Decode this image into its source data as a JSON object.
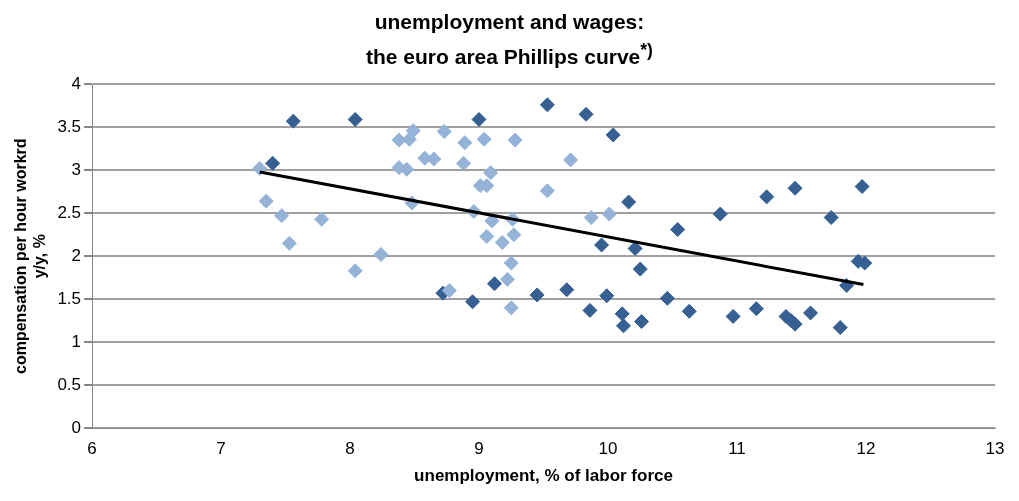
{
  "chart_data": {
    "type": "scatter",
    "title": "unemployment and wages:\nthe euro area Phillips curve$^{*)}$",
    "xlabel": "unemployment, % of labor force",
    "ylabel": "compensation per hour workrd\ny/y, %",
    "xlim": [
      6,
      13
    ],
    "xticks": [
      6,
      7,
      8,
      9,
      10,
      11,
      12,
      13
    ],
    "ylim": [
      0,
      4
    ],
    "yticks": [
      0,
      {
        "value": 0.5,
        "label": "0.5"
      },
      1,
      {
        "value": 1.5,
        "label": "1.5"
      },
      2,
      {
        "value": 2.5,
        "label": "2.5"
      },
      3,
      {
        "value": 3.5,
        "label": "3.5"
      },
      4
    ],
    "grid": "y",
    "legend": false,
    "marker": "diamond",
    "series": [
      {
        "color": "#95b3d7",
        "x": [
          7.3,
          7.35,
          7.47,
          7.53,
          7.78,
          8.04,
          8.24,
          8.38,
          8.46,
          8.49,
          8.38,
          8.44,
          8.58,
          8.65,
          8.73,
          8.89,
          8.88,
          9.04,
          8.48,
          8.96,
          9.09,
          9.01,
          9.06,
          9.1,
          9.06,
          8.77,
          9.28,
          9.71,
          9.53,
          9.87,
          10.01,
          9.26,
          9.18,
          9.27,
          9.25,
          9.22,
          9.25
        ],
        "values": [
          3.02,
          2.64,
          2.47,
          2.15,
          2.43,
          1.83,
          2.02,
          3.35,
          3.36,
          3.46,
          3.03,
          3.01,
          3.14,
          3.13,
          3.45,
          3.32,
          3.08,
          3.36,
          2.62,
          2.52,
          2.97,
          2.82,
          2.82,
          2.41,
          2.23,
          1.6,
          3.35,
          3.12,
          2.76,
          2.45,
          2.49,
          2.43,
          2.16,
          2.25,
          1.92,
          1.73,
          1.4
        ]
      },
      {
        "color": "#366092",
        "x": [
          7.4,
          7.56,
          8.04,
          9.0,
          8.72,
          8.95,
          9.12,
          9.53,
          9.83,
          10.04,
          10.16,
          10.87,
          10.54,
          9.95,
          10.21,
          10.25,
          9.45,
          9.68,
          9.99,
          10.46,
          9.86,
          10.11,
          10.12,
          10.26,
          10.63,
          10.97,
          11.23,
          11.45,
          11.97,
          11.73,
          11.94,
          11.99,
          11.85,
          11.15,
          11.38,
          11.45,
          11.42,
          11.57,
          11.8
        ],
        "values": [
          3.08,
          3.57,
          3.59,
          3.59,
          1.57,
          1.47,
          1.68,
          3.76,
          3.65,
          3.41,
          2.63,
          2.49,
          2.31,
          2.13,
          2.09,
          1.85,
          1.55,
          1.61,
          1.54,
          1.51,
          1.37,
          1.33,
          1.19,
          1.24,
          1.36,
          1.3,
          2.69,
          2.79,
          2.81,
          2.45,
          1.94,
          1.92,
          1.66,
          1.39,
          1.3,
          1.21,
          1.25,
          1.34,
          1.17
        ]
      },
      {
        "type": "line",
        "color": "#000000",
        "x": [
          7.3,
          11.98
        ],
        "values": [
          2.98,
          1.67
        ],
        "marker": "none"
      }
    ]
  }
}
